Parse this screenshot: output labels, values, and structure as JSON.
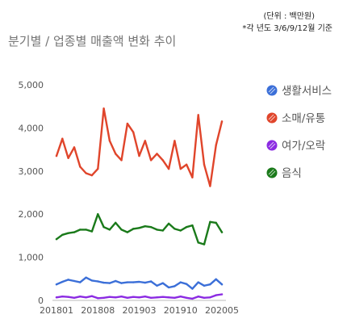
{
  "header": {
    "unit_note": "(단위 : 백만원)",
    "basis_note": "*각 년도 3/6/9/12월 기준"
  },
  "chart_data": {
    "type": "line",
    "title": "분기별 / 업종별 매출액 변화 추이",
    "xlabel": "",
    "ylabel": "",
    "ylim": [
      0,
      5000
    ],
    "yticks": [
      0,
      1000,
      2000,
      3000,
      4000,
      5000
    ],
    "ytick_labels": [
      "0",
      "1,000",
      "2,000",
      "3,000",
      "4,000",
      "5,000"
    ],
    "x": [
      "201801",
      "201802",
      "201803",
      "201804",
      "201805",
      "201806",
      "201807",
      "201808",
      "201809",
      "201810",
      "201811",
      "201812",
      "201901",
      "201902",
      "201903",
      "201904",
      "201905",
      "201906",
      "201907",
      "201908",
      "201909",
      "201910",
      "201911",
      "201912",
      "202001",
      "202002",
      "202003",
      "202004",
      "202005"
    ],
    "xtick_labels": [
      "201801",
      "201808",
      "201903",
      "201910",
      "202005"
    ],
    "grid": false,
    "legend_position": "right",
    "series": [
      {
        "name": "생활서비스",
        "color": "#3b6fd8",
        "values": [
          370,
          430,
          480,
          450,
          420,
          530,
          460,
          440,
          410,
          400,
          450,
          400,
          420,
          420,
          430,
          410,
          440,
          340,
          400,
          300,
          330,
          420,
          380,
          270,
          420,
          340,
          370,
          490,
          370
        ]
      },
      {
        "name": "소매/유통",
        "color": "#e0452b",
        "values": [
          3350,
          3750,
          3300,
          3550,
          3100,
          2950,
          2900,
          3050,
          4450,
          3700,
          3400,
          3250,
          4100,
          3900,
          3350,
          3700,
          3250,
          3400,
          3250,
          3050,
          3700,
          3050,
          3150,
          2850,
          4300,
          3150,
          2650,
          3600,
          4150
        ]
      },
      {
        "name": "여가/오락",
        "color": "#8b2be2",
        "values": [
          70,
          90,
          80,
          60,
          90,
          70,
          100,
          50,
          60,
          80,
          70,
          90,
          60,
          80,
          70,
          90,
          60,
          70,
          80,
          70,
          60,
          90,
          60,
          40,
          90,
          60,
          70,
          120,
          140
        ]
      },
      {
        "name": "음식",
        "color": "#1a7a1a",
        "values": [
          1420,
          1520,
          1560,
          1580,
          1640,
          1640,
          1600,
          2000,
          1700,
          1640,
          1800,
          1640,
          1580,
          1660,
          1680,
          1720,
          1700,
          1640,
          1620,
          1780,
          1660,
          1620,
          1700,
          1740,
          1340,
          1300,
          1820,
          1800,
          1580
        ]
      }
    ]
  }
}
